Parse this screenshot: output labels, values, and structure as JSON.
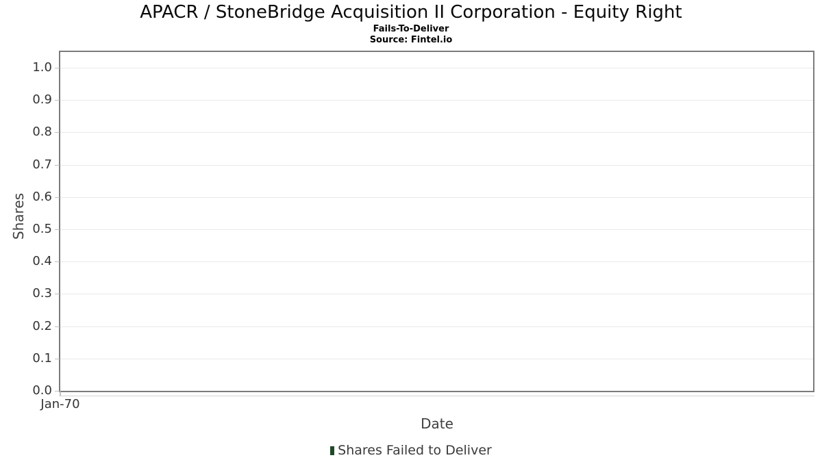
{
  "header": {
    "title": "APACR / StoneBridge Acquisition II Corporation - Equity Right",
    "subtitle": "Fails-To-Deliver",
    "source": "Source: Fintel.io"
  },
  "chart_data": {
    "type": "bar",
    "title": "APACR / StoneBridge Acquisition II Corporation - Equity Right",
    "subtitle": "Fails-To-Deliver",
    "source": "Source: Fintel.io",
    "xlabel": "Date",
    "ylabel": "Shares",
    "ylim": [
      0.0,
      1.05
    ],
    "grid": true,
    "y_ticks": [
      {
        "value": 0.0,
        "label": "0.0"
      },
      {
        "value": 0.1,
        "label": "0.1"
      },
      {
        "value": 0.2,
        "label": "0.2"
      },
      {
        "value": 0.3,
        "label": "0.3"
      },
      {
        "value": 0.4,
        "label": "0.4"
      },
      {
        "value": 0.5,
        "label": "0.5"
      },
      {
        "value": 0.6,
        "label": "0.6"
      },
      {
        "value": 0.7,
        "label": "0.7"
      },
      {
        "value": 0.8,
        "label": "0.8"
      },
      {
        "value": 0.9,
        "label": "0.9"
      },
      {
        "value": 1.0,
        "label": "1.0"
      }
    ],
    "x_ticks": [
      {
        "label": "Jan-70",
        "position": 0
      }
    ],
    "legend": {
      "position": "bottom",
      "entries": [
        {
          "label": "Shares Failed to Deliver",
          "color": "#1f4a28"
        }
      ]
    },
    "series": [
      {
        "name": "Shares Failed to Deliver",
        "color": "#1f4a28",
        "x": [],
        "values": []
      }
    ],
    "note": "empty plot area - no data points rendered"
  },
  "colors": {
    "plot_border": "#7b7b7b",
    "gridline": "#e9e9e9",
    "tick_mark": "#bfbfbf",
    "tick_label": "#333333",
    "axis_title": "#404040",
    "legend_marker": "#1f4a28",
    "background": "#ffffff"
  }
}
